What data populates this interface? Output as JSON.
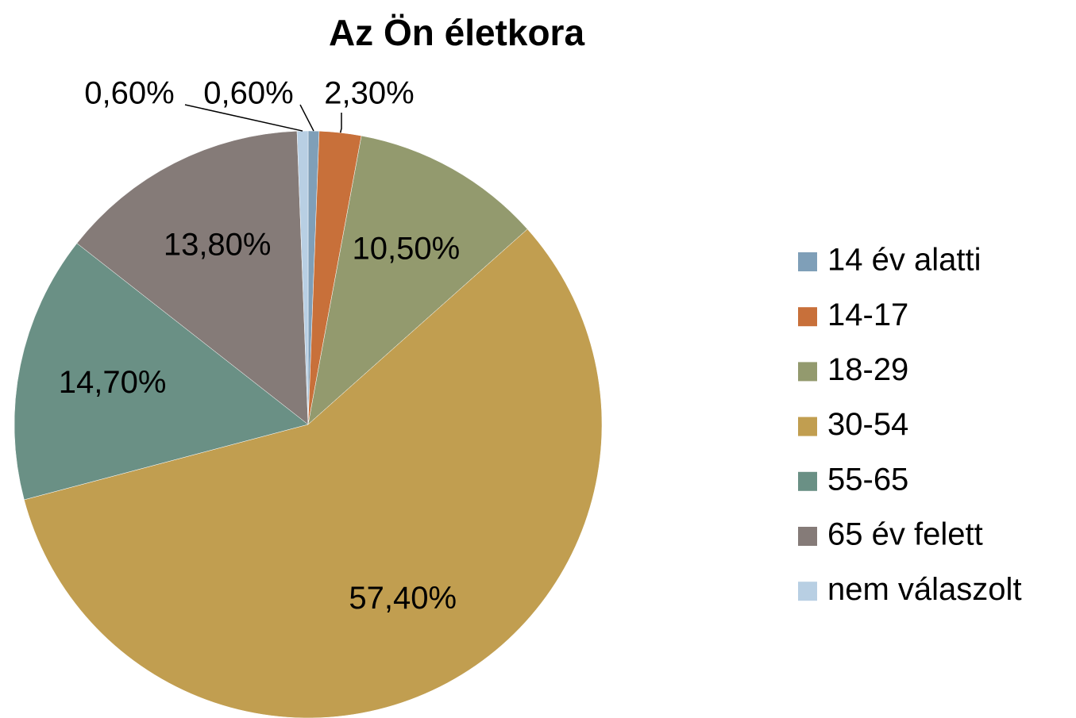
{
  "chart_data": {
    "type": "pie",
    "title": "Az Ön életkora",
    "categories": [
      "14 év alatti",
      "14-17",
      "18-29",
      "30-54",
      "55-65",
      "65 év felett",
      "nem válaszolt"
    ],
    "values": [
      0.6,
      2.3,
      10.5,
      57.4,
      14.7,
      13.8,
      0.6
    ],
    "value_labels": [
      "0,60%",
      "2,30%",
      "10,50%",
      "57,40%",
      "14,70%",
      "13,80%",
      "0,60%"
    ],
    "colors": [
      "#7f9fb8",
      "#c8703a",
      "#939a6e",
      "#c19e50",
      "#6a9085",
      "#857b78",
      "#b8cfe3"
    ],
    "legend": "right"
  }
}
